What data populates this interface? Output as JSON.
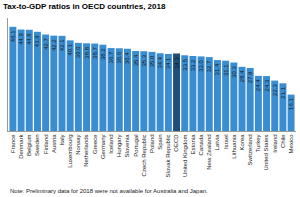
{
  "chart_data": {
    "type": "bar",
    "title": "Tax-to-GDP ratios in OECD countries, 2018",
    "note": "Note: Preliminary data for 2018 were not available for Australia and Japan.",
    "categories": [
      "France",
      "Denmark",
      "Belgium",
      "Sweden",
      "Finland",
      "Austria",
      "Italy",
      "Luxembourg",
      "Norway",
      "Netherlands",
      "Greece",
      "Germany",
      "Iceland",
      "Hungary",
      "Slovenia",
      "Portugal",
      "Czech Republic",
      "Poland",
      "Spain",
      "Slovak Republic",
      "OECD",
      "United Kingdom",
      "Estonia",
      "Canada",
      "New Zealand",
      "Latvia",
      "Israel",
      "Lithuania",
      "Korea",
      "Switzerland",
      "Turkey",
      "United States",
      "Ireland",
      "Chile",
      "Mexico"
    ],
    "values": [
      46.1,
      44.9,
      44.8,
      43.9,
      42.7,
      42.2,
      42.1,
      40.1,
      39.0,
      38.8,
      38.7,
      38.2,
      36.7,
      36.6,
      36.4,
      35.4,
      35.3,
      35.0,
      34.4,
      34.1,
      34.3,
      33.5,
      33.2,
      33.0,
      32.7,
      31.4,
      31.1,
      30.3,
      28.4,
      27.9,
      24.4,
      24.3,
      22.3,
      21.1,
      16.1
    ],
    "value_labels": [
      "46.1",
      "44.9",
      "44.8",
      "43.9",
      "42.7",
      "42.2",
      "42.1",
      "40.1",
      "39.0",
      "38.8",
      "38.7",
      "38.2",
      "36.7",
      "36.6",
      "36.4",
      "35.4",
      "35.3",
      "35.0",
      "34.4",
      "34.1",
      "34.3",
      "33.5",
      "33.2",
      "33.0",
      "32.7",
      "31.4",
      "31.1",
      "30.3",
      "28.4",
      "27.9",
      "24.4",
      "24.3",
      "22.3",
      "21.1",
      "16.1"
    ],
    "colors": [
      "#3a8dd0",
      "#3a8dd0",
      "#3a8dd0",
      "#3a8dd0",
      "#3a8dd0",
      "#3a8dd0",
      "#3a8dd0",
      "#3a8dd0",
      "#3a8dd0",
      "#3a8dd0",
      "#3a8dd0",
      "#3a8dd0",
      "#3a8dd0",
      "#3a8dd0",
      "#3a8dd0",
      "#3a8dd0",
      "#3a8dd0",
      "#3a8dd0",
      "#3a8dd0",
      "#3a8dd0",
      "#1f4e79",
      "#3a8dd0",
      "#3a8dd0",
      "#3a8dd0",
      "#3a8dd0",
      "#3a8dd0",
      "#3a8dd0",
      "#3a8dd0",
      "#3a8dd0",
      "#3a8dd0",
      "#3a8dd0",
      "#3a8dd0",
      "#3a8dd0",
      "#3a8dd0",
      "#3a8dd0"
    ],
    "ylim": [
      0,
      50
    ],
    "grid": false,
    "data_labels": true,
    "tick_labels": "x"
  }
}
